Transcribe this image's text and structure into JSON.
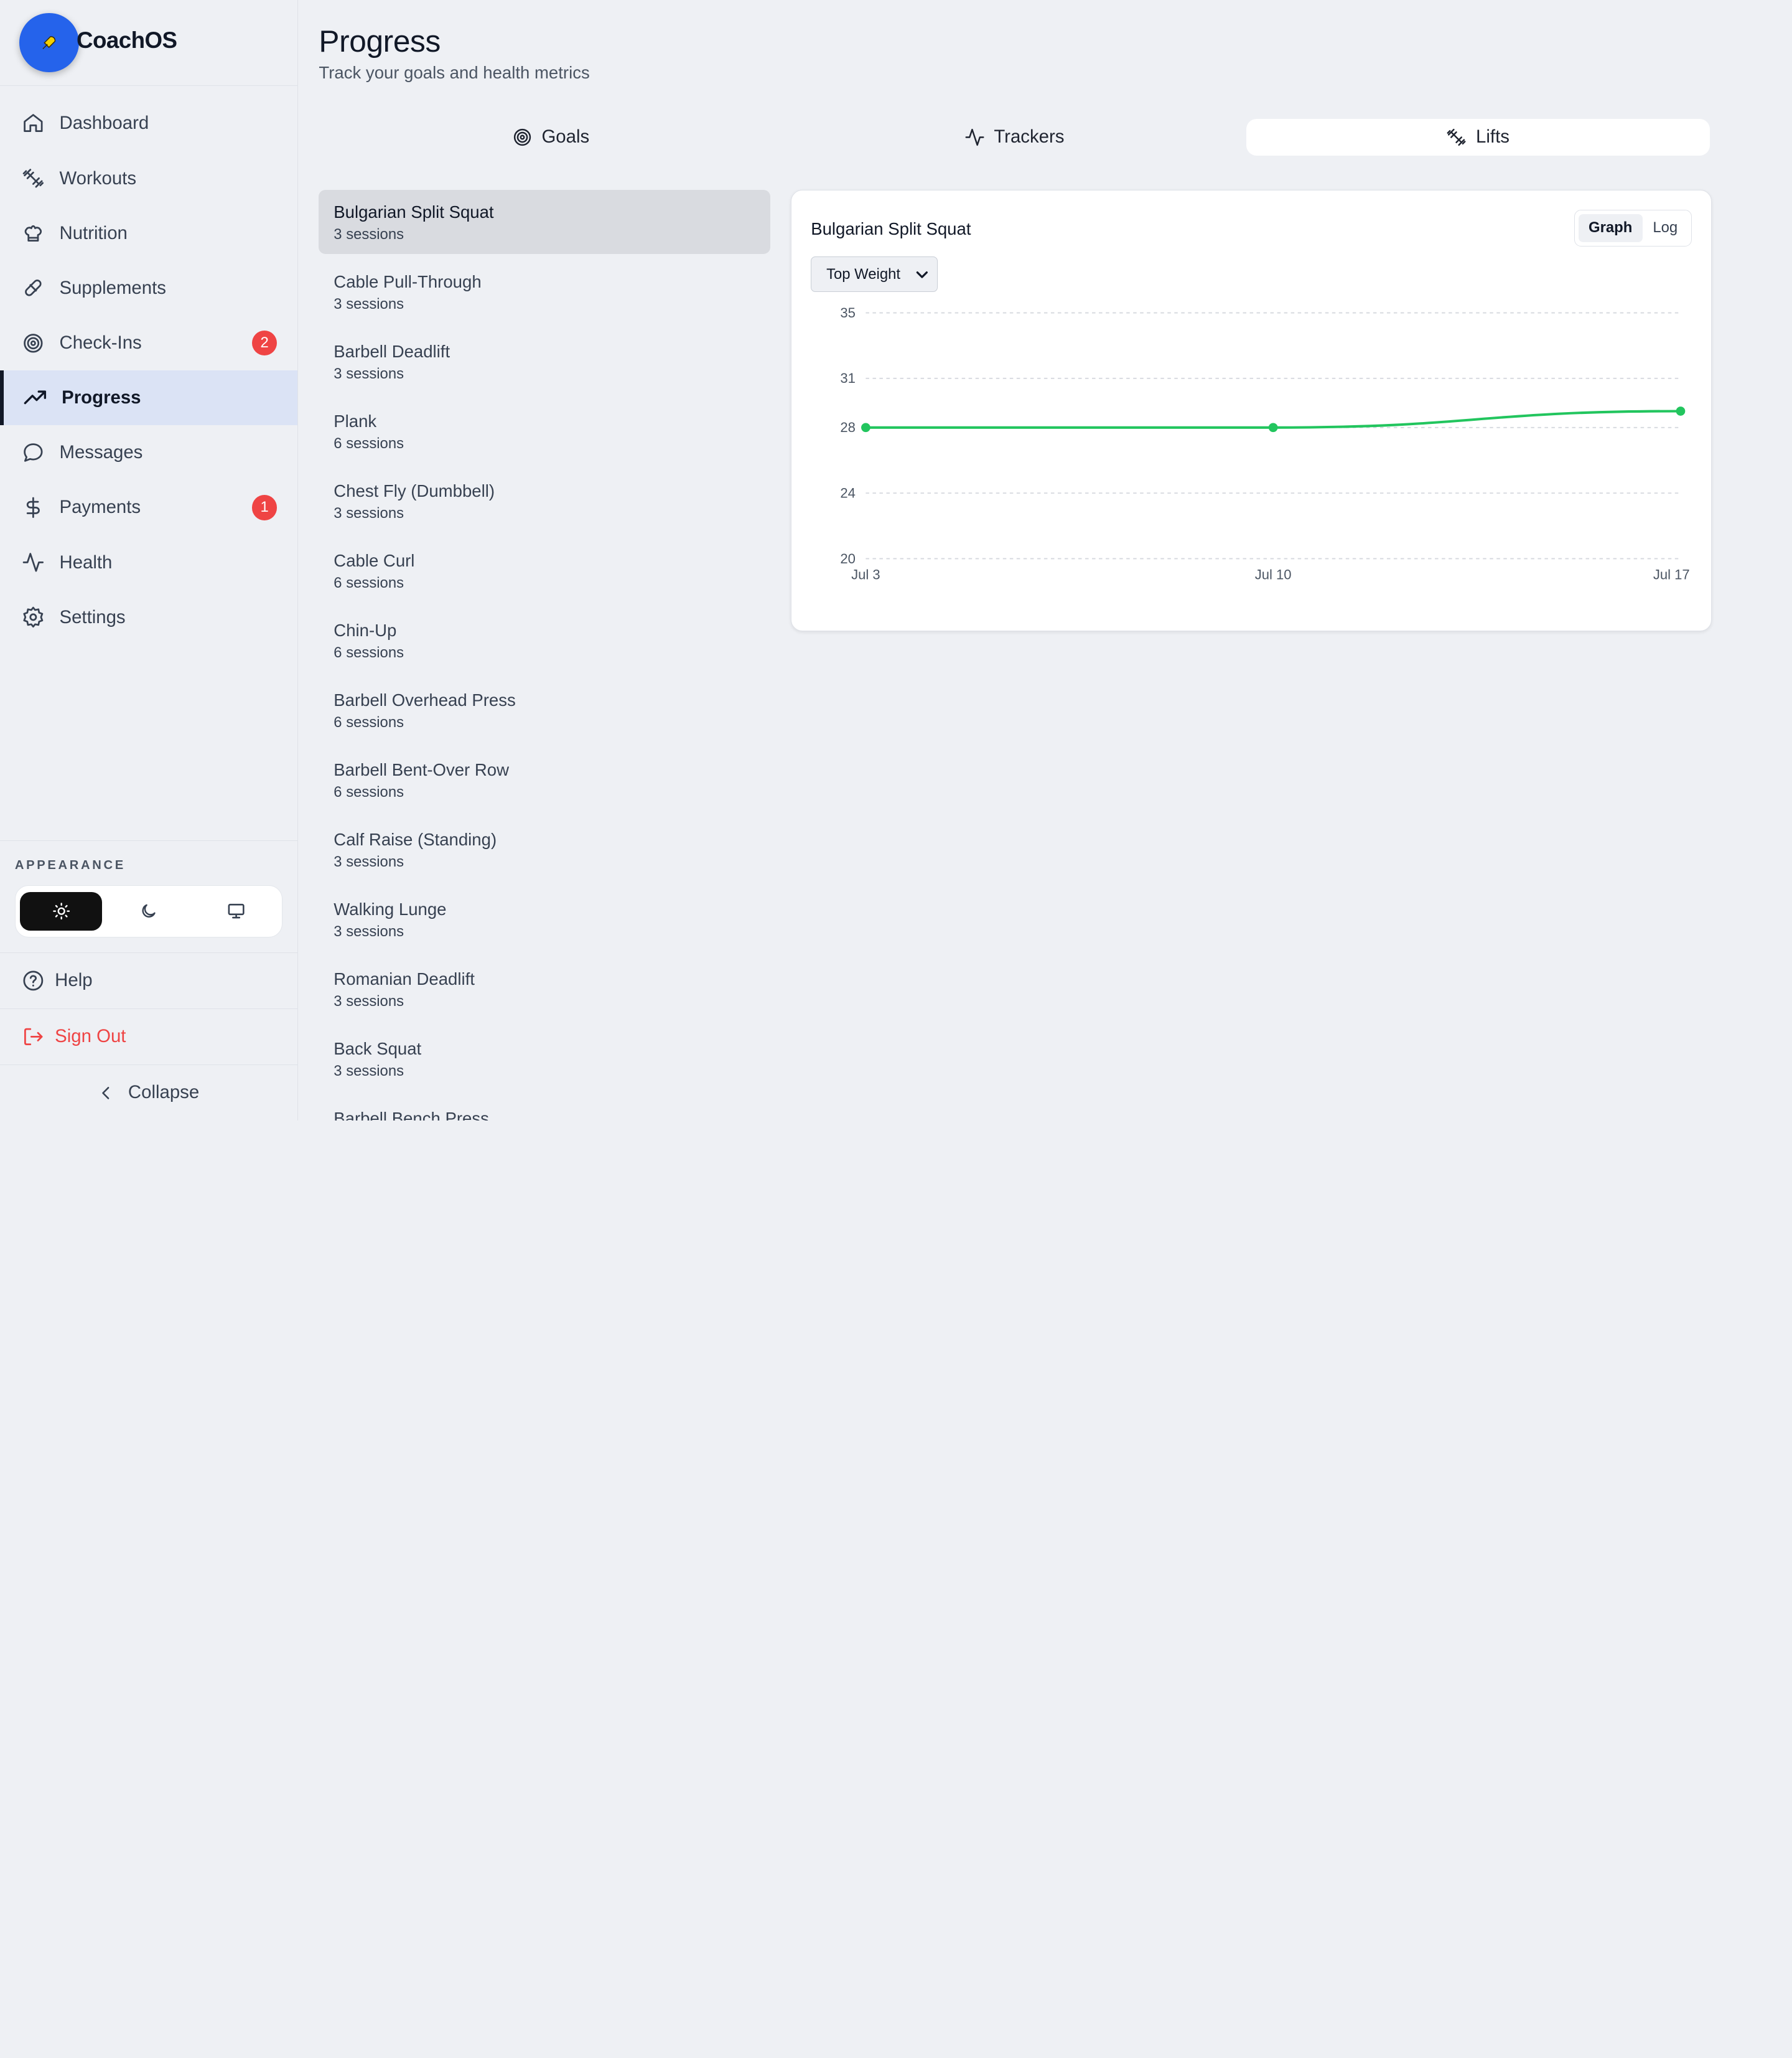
{
  "app": {
    "name": "CoachOS",
    "logo_icon": "rocket-icon"
  },
  "sidebar": {
    "items": [
      {
        "label": "Dashboard",
        "icon": "home-icon"
      },
      {
        "label": "Workouts",
        "icon": "dumbbell-icon"
      },
      {
        "label": "Nutrition",
        "icon": "chef-hat-icon"
      },
      {
        "label": "Supplements",
        "icon": "pill-icon"
      },
      {
        "label": "Check-Ins",
        "icon": "target-icon",
        "badge": "2"
      },
      {
        "label": "Progress",
        "icon": "trending-up-icon",
        "active": true
      },
      {
        "label": "Messages",
        "icon": "message-icon"
      },
      {
        "label": "Payments",
        "icon": "dollar-icon",
        "badge": "1"
      },
      {
        "label": "Health",
        "icon": "activity-icon"
      },
      {
        "label": "Settings",
        "icon": "gear-icon"
      }
    ],
    "appearance_label": "APPEARANCE",
    "theme_options": [
      "light",
      "dark",
      "system"
    ],
    "theme_selected": "light",
    "help_label": "Help",
    "signout_label": "Sign Out",
    "collapse_label": "Collapse"
  },
  "page": {
    "title": "Progress",
    "subtitle": "Track your goals and health metrics",
    "tabs": [
      {
        "label": "Goals",
        "icon": "target-icon"
      },
      {
        "label": "Trackers",
        "icon": "activity-icon"
      },
      {
        "label": "Lifts",
        "icon": "dumbbell-icon",
        "active": true
      }
    ]
  },
  "exercises": [
    {
      "name": "Bulgarian Split Squat",
      "sessions": "3 sessions",
      "selected": true
    },
    {
      "name": "Cable Pull-Through",
      "sessions": "3 sessions"
    },
    {
      "name": "Barbell Deadlift",
      "sessions": "3 sessions"
    },
    {
      "name": "Plank",
      "sessions": "6 sessions"
    },
    {
      "name": "Chest Fly (Dumbbell)",
      "sessions": "3 sessions"
    },
    {
      "name": "Cable Curl",
      "sessions": "6 sessions"
    },
    {
      "name": "Chin-Up",
      "sessions": "6 sessions"
    },
    {
      "name": "Barbell Overhead Press",
      "sessions": "6 sessions"
    },
    {
      "name": "Barbell Bent-Over Row",
      "sessions": "6 sessions"
    },
    {
      "name": "Calf Raise (Standing)",
      "sessions": "3 sessions"
    },
    {
      "name": "Walking Lunge",
      "sessions": "3 sessions"
    },
    {
      "name": "Romanian Deadlift",
      "sessions": "3 sessions"
    },
    {
      "name": "Back Squat",
      "sessions": "3 sessions"
    },
    {
      "name": "Barbell Bench Press",
      "sessions": ""
    }
  ],
  "detail": {
    "title": "Bulgarian Split Squat",
    "view_graph": "Graph",
    "view_log": "Log",
    "view_selected": "Graph",
    "metric": "Top Weight"
  },
  "chart_data": {
    "type": "line",
    "x": [
      "Jul 3",
      "Jul 10",
      "Jul 17"
    ],
    "values": [
      28,
      28,
      29
    ],
    "y_ticks": [
      20,
      24,
      28,
      31,
      35
    ],
    "ylim": [
      20,
      35
    ],
    "grid": true,
    "line_color": "#22c55e"
  }
}
